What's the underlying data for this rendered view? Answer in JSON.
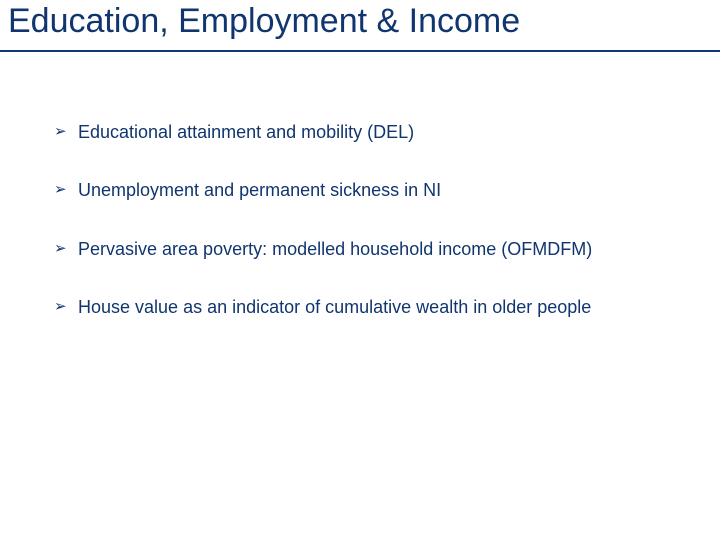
{
  "slide": {
    "title": "Education, Employment & Income",
    "title_color": "#10356f",
    "title_fontsize": 34,
    "underline_color": "#10356f",
    "background_color": "#ffffff",
    "bullet_marker": "➢",
    "bullet_color": "#10356f",
    "bullet_fontsize": 18,
    "bullets": [
      {
        "text": "Educational attainment and mobility (DEL)"
      },
      {
        "text": "Unemployment and permanent sickness in NI"
      },
      {
        "text": "Pervasive area poverty: modelled household income (OFMDFM)"
      },
      {
        "text": "House value as an indicator of cumulative wealth in older people"
      }
    ]
  }
}
